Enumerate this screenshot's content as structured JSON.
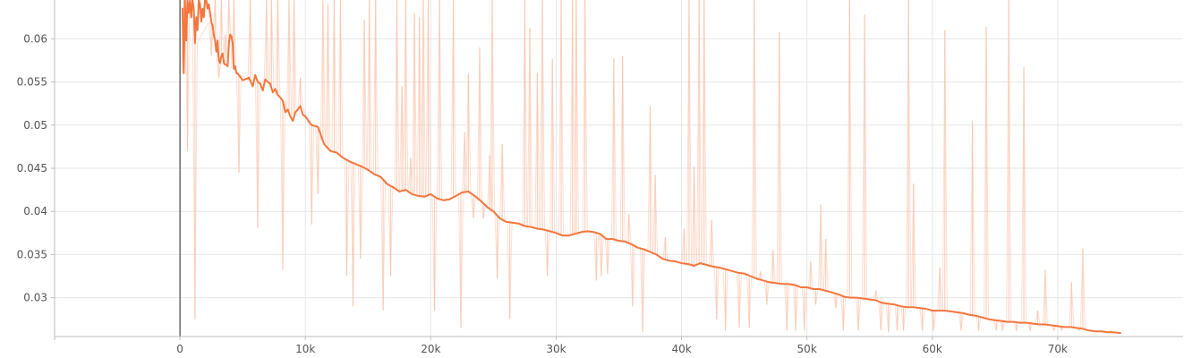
{
  "chart_data": {
    "type": "line",
    "title": "",
    "xlabel": "",
    "ylabel": "",
    "xlim": [
      -10000,
      80000
    ],
    "ylim": [
      0.0255,
      0.0645
    ],
    "grid": true,
    "x_ticks": [
      0,
      10000,
      20000,
      30000,
      40000,
      50000,
      60000,
      70000
    ],
    "x_tick_labels": [
      "0",
      "10k",
      "20k",
      "30k",
      "40k",
      "50k",
      "60k",
      "70k"
    ],
    "y_ticks": [
      0.03,
      0.035,
      0.04,
      0.045,
      0.05,
      0.055,
      0.06
    ],
    "y_tick_labels": [
      "0.03",
      "0.035",
      "0.04",
      "0.045",
      "0.05",
      "0.055",
      "0.06"
    ],
    "colors": {
      "smoothed": "#f4763d",
      "raw": "#f9c0a6",
      "zero_line": "#444444"
    },
    "series": [
      {
        "role": "smoothed",
        "x": [
          200,
          300,
          400,
          500,
          600,
          700,
          800,
          900,
          1000,
          1100,
          1200,
          1300,
          1400,
          1500,
          1600,
          1700,
          1800,
          1900,
          2000,
          2100,
          2200,
          2300,
          2400,
          2500,
          2600,
          2700,
          2800,
          2900,
          3000,
          3100,
          3200,
          3300,
          3400,
          3500,
          3600,
          3700,
          3800,
          3900,
          4000,
          4100,
          4200,
          4300,
          4400,
          4500,
          4600,
          4700,
          5000,
          5500,
          5800,
          6000,
          6200,
          6400,
          6600,
          6800,
          7000,
          7200,
          7400,
          7600,
          7800,
          8000,
          8200,
          8400,
          8600,
          8800,
          9000,
          9200,
          9400,
          9600,
          9800,
          10000,
          10500,
          11000,
          11500,
          12000,
          12500,
          13000,
          13500,
          14000,
          14500,
          15000,
          15500,
          16000,
          16500,
          17000,
          17500,
          18000,
          18500,
          19000,
          19500,
          20000,
          20500,
          21000,
          21500,
          22000,
          22500,
          23000,
          23500,
          24000,
          24500,
          25000,
          25500,
          26000,
          26500,
          27000,
          27500,
          28000,
          28500,
          29000,
          29500,
          30000,
          30500,
          31000,
          31500,
          32000,
          32500,
          33000,
          33500,
          34000,
          34500,
          35000,
          35500,
          36000,
          36500,
          37000,
          37500,
          38000,
          38500,
          39000,
          39500,
          40000,
          40500,
          41000,
          41500,
          42000,
          42500,
          43000,
          43500,
          44000,
          44500,
          45000,
          45500,
          46000,
          46500,
          47000,
          47500,
          48000,
          48500,
          49000,
          49500,
          50000,
          50500,
          51000,
          51500,
          52000,
          52500,
          53000,
          53500,
          54000,
          54500,
          55000,
          55500,
          56000,
          56500,
          57000,
          57500,
          58000,
          58500,
          59000,
          59500,
          60000,
          60500,
          61000,
          61500,
          62000,
          62500,
          63000,
          63500,
          64000,
          64500,
          65000,
          65500,
          66000,
          66500,
          67000,
          67500,
          68000,
          68500,
          69000,
          69500,
          70000,
          70500,
          71000,
          71500,
          72000,
          72500,
          73000,
          73500,
          74000,
          74500,
          75000
        ],
        "y": [
          0.0635,
          0.056,
          0.0645,
          0.0598,
          0.0645,
          0.063,
          0.0645,
          0.0625,
          0.0645,
          0.0635,
          0.0595,
          0.0625,
          0.061,
          0.0645,
          0.064,
          0.062,
          0.0635,
          0.0625,
          0.0645,
          0.0645,
          0.0635,
          0.064,
          0.063,
          0.062,
          0.0615,
          0.0605,
          0.0598,
          0.0585,
          0.0598,
          0.0575,
          0.0572,
          0.058,
          0.0583,
          0.0572,
          0.057,
          0.057,
          0.0568,
          0.0595,
          0.0605,
          0.0603,
          0.0595,
          0.0565,
          0.0568,
          0.056,
          0.056,
          0.0558,
          0.0552,
          0.0555,
          0.0545,
          0.0558,
          0.055,
          0.0548,
          0.054,
          0.0553,
          0.055,
          0.0548,
          0.0538,
          0.0542,
          0.0535,
          0.0532,
          0.0528,
          0.0515,
          0.0518,
          0.051,
          0.0505,
          0.0515,
          0.0518,
          0.0522,
          0.0512,
          0.051,
          0.05,
          0.0498,
          0.0478,
          0.047,
          0.0468,
          0.0462,
          0.0458,
          0.0455,
          0.0452,
          0.0448,
          0.0443,
          0.044,
          0.0432,
          0.0428,
          0.0423,
          0.0425,
          0.042,
          0.0418,
          0.0417,
          0.042,
          0.0415,
          0.0413,
          0.0414,
          0.0418,
          0.0422,
          0.0423,
          0.0418,
          0.0412,
          0.0405,
          0.04,
          0.0392,
          0.0388,
          0.0387,
          0.0386,
          0.0383,
          0.0382,
          0.038,
          0.0379,
          0.0377,
          0.0375,
          0.0372,
          0.0372,
          0.0374,
          0.0376,
          0.0377,
          0.0376,
          0.0374,
          0.0368,
          0.0368,
          0.0366,
          0.0365,
          0.0362,
          0.0358,
          0.0356,
          0.0353,
          0.035,
          0.0345,
          0.0343,
          0.0342,
          0.034,
          0.0339,
          0.0337,
          0.034,
          0.0338,
          0.0336,
          0.0335,
          0.0333,
          0.0331,
          0.0329,
          0.0328,
          0.0325,
          0.0322,
          0.032,
          0.0318,
          0.0317,
          0.0316,
          0.0316,
          0.0315,
          0.0312,
          0.0312,
          0.031,
          0.031,
          0.0308,
          0.0306,
          0.0304,
          0.0301,
          0.03,
          0.03,
          0.0299,
          0.0298,
          0.0297,
          0.0294,
          0.0293,
          0.0292,
          0.029,
          0.0289,
          0.0289,
          0.0288,
          0.0287,
          0.0285,
          0.0285,
          0.0285,
          0.0284,
          0.0283,
          0.0282,
          0.028,
          0.0279,
          0.0277,
          0.0275,
          0.0274,
          0.0273,
          0.0272,
          0.0272,
          0.0271,
          0.0271,
          0.027,
          0.0269,
          0.0269,
          0.0268,
          0.0267,
          0.0266,
          0.0266,
          0.0265,
          0.0264,
          0.0262,
          0.0261,
          0.0261,
          0.026,
          0.026,
          0.0259
        ]
      },
      {
        "role": "raw",
        "x": [
          300,
          600,
          900,
          1200,
          2500,
          2800,
          3100,
          3300,
          3600,
          3900,
          4300,
          4700,
          5600,
          6200,
          6900,
          7300,
          7800,
          8200,
          8700,
          9100,
          9600,
          10500,
          11000,
          11400,
          11800,
          12300,
          12800,
          13300,
          13800,
          14400,
          14700,
          15100,
          15600,
          16200,
          16800,
          17300,
          17700,
          18000,
          18400,
          18700,
          19100,
          19400,
          19800,
          20300,
          20700,
          21100,
          21800,
          22400,
          22700,
          23000,
          23400,
          23900,
          24200,
          24700,
          24900,
          25300,
          25700,
          26300,
          27500,
          27900,
          28500,
          28900,
          29300,
          29700,
          30400,
          31300,
          31600,
          32300,
          33200,
          33600,
          34100,
          34600,
          35300,
          35800,
          36100,
          36900,
          37500,
          37900,
          38700,
          40200,
          40600,
          41000,
          41400,
          41800,
          42400,
          42800,
          43500,
          44600,
          45400,
          45800,
          46300,
          46800,
          47300,
          47800,
          48400,
          49100,
          49800,
          50300,
          50700,
          51100,
          51500,
          52300,
          52900,
          53400,
          54100,
          54600,
          55500,
          55900,
          56500,
          57200,
          57700,
          58100,
          58500,
          59200,
          60100,
          60600,
          61000,
          62300,
          63200,
          63700,
          64300,
          65100,
          65600,
          66100,
          66700,
          67300,
          67800,
          68400,
          69000,
          69700,
          70300,
          71100,
          71700,
          72000,
          72500,
          73400,
          74200
        ],
        "y": [
          0.0645,
          0.047,
          0.063,
          0.0275,
          0.058,
          0.0645,
          0.0555,
          0.0645,
          0.0605,
          0.0645,
          0.0645,
          0.0445,
          0.0645,
          0.0381,
          0.0645,
          0.0645,
          0.0645,
          0.0333,
          0.0645,
          0.0645,
          0.0555,
          0.0385,
          0.042,
          0.0645,
          0.064,
          0.0645,
          0.0645,
          0.0325,
          0.029,
          0.0345,
          0.0622,
          0.0645,
          0.0645,
          0.0285,
          0.0325,
          0.0645,
          0.0545,
          0.0645,
          0.0462,
          0.063,
          0.0625,
          0.0645,
          0.0645,
          0.0285,
          0.0645,
          0.0412,
          0.0645,
          0.0265,
          0.0492,
          0.056,
          0.0392,
          0.059,
          0.0392,
          0.0465,
          0.0645,
          0.0322,
          0.0478,
          0.0275,
          0.0645,
          0.0613,
          0.0561,
          0.0645,
          0.0325,
          0.0577,
          0.0645,
          0.0645,
          0.0645,
          0.0645,
          0.032,
          0.0325,
          0.0328,
          0.0577,
          0.058,
          0.0397,
          0.029,
          0.026,
          0.0522,
          0.0442,
          0.037,
          0.038,
          0.0645,
          0.0452,
          0.0645,
          0.0645,
          0.039,
          0.0275,
          0.0262,
          0.0265,
          0.0265,
          0.0645,
          0.033,
          0.0292,
          0.0355,
          0.0608,
          0.0262,
          0.0262,
          0.0262,
          0.0342,
          0.0292,
          0.0408,
          0.0368,
          0.0288,
          0.0262,
          0.0645,
          0.0262,
          0.0628,
          0.0308,
          0.0262,
          0.026,
          0.0262,
          0.0262,
          0.0645,
          0.0432,
          0.0262,
          0.0262,
          0.0335,
          0.061,
          0.0262,
          0.0505,
          0.0262,
          0.0614,
          0.0262,
          0.0262,
          0.0645,
          0.0262,
          0.0567,
          0.0262,
          0.0285,
          0.0332,
          0.0262,
          0.0262,
          0.0318,
          0.0262,
          0.0357,
          0.0262,
          0.0262,
          0.0262
        ]
      }
    ]
  }
}
